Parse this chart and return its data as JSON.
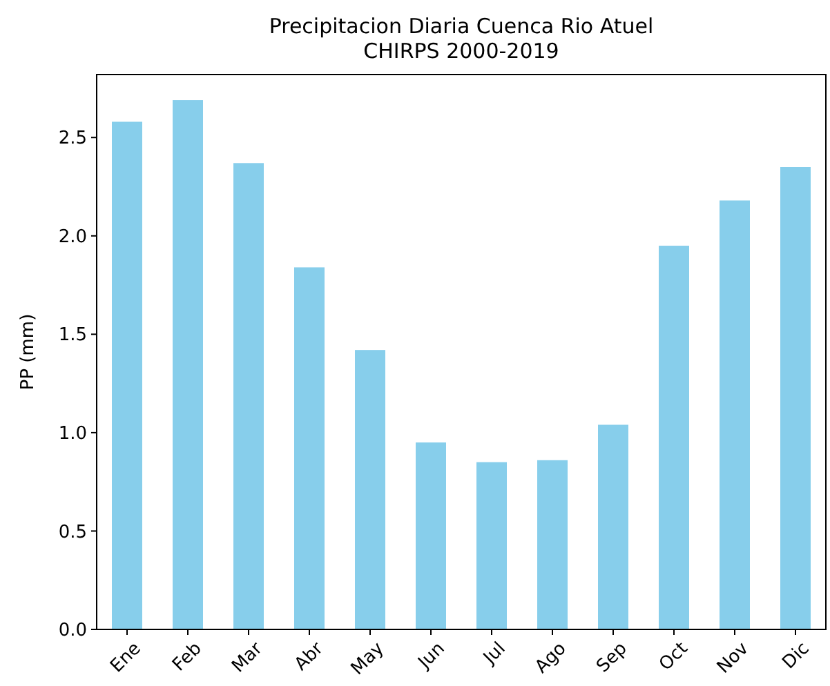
{
  "chart_data": {
    "type": "bar",
    "title": "Precipitacion Diaria Cuenca Rio Atuel\nCHIRPS 2000-2019",
    "ylabel": "PP (mm)",
    "categories": [
      "Ene",
      "Feb",
      "Mar",
      "Abr",
      "May",
      "Jun",
      "Jul",
      "Ago",
      "Sep",
      "Oct",
      "Nov",
      "Dic"
    ],
    "values": [
      2.58,
      2.69,
      2.37,
      1.84,
      1.42,
      0.95,
      0.85,
      0.86,
      1.04,
      1.95,
      2.18,
      2.35
    ],
    "color": "#87ceeb",
    "ylim": [
      0,
      2.82
    ],
    "yticks": [
      {
        "value": 0,
        "label": "0.0"
      },
      {
        "value": 0.5,
        "label": "0.5"
      },
      {
        "value": 1,
        "label": "1.0"
      },
      {
        "value": 1.5,
        "label": "1.5"
      },
      {
        "value": 2,
        "label": "2.0"
      },
      {
        "value": 2.5,
        "label": "2.5"
      }
    ]
  }
}
